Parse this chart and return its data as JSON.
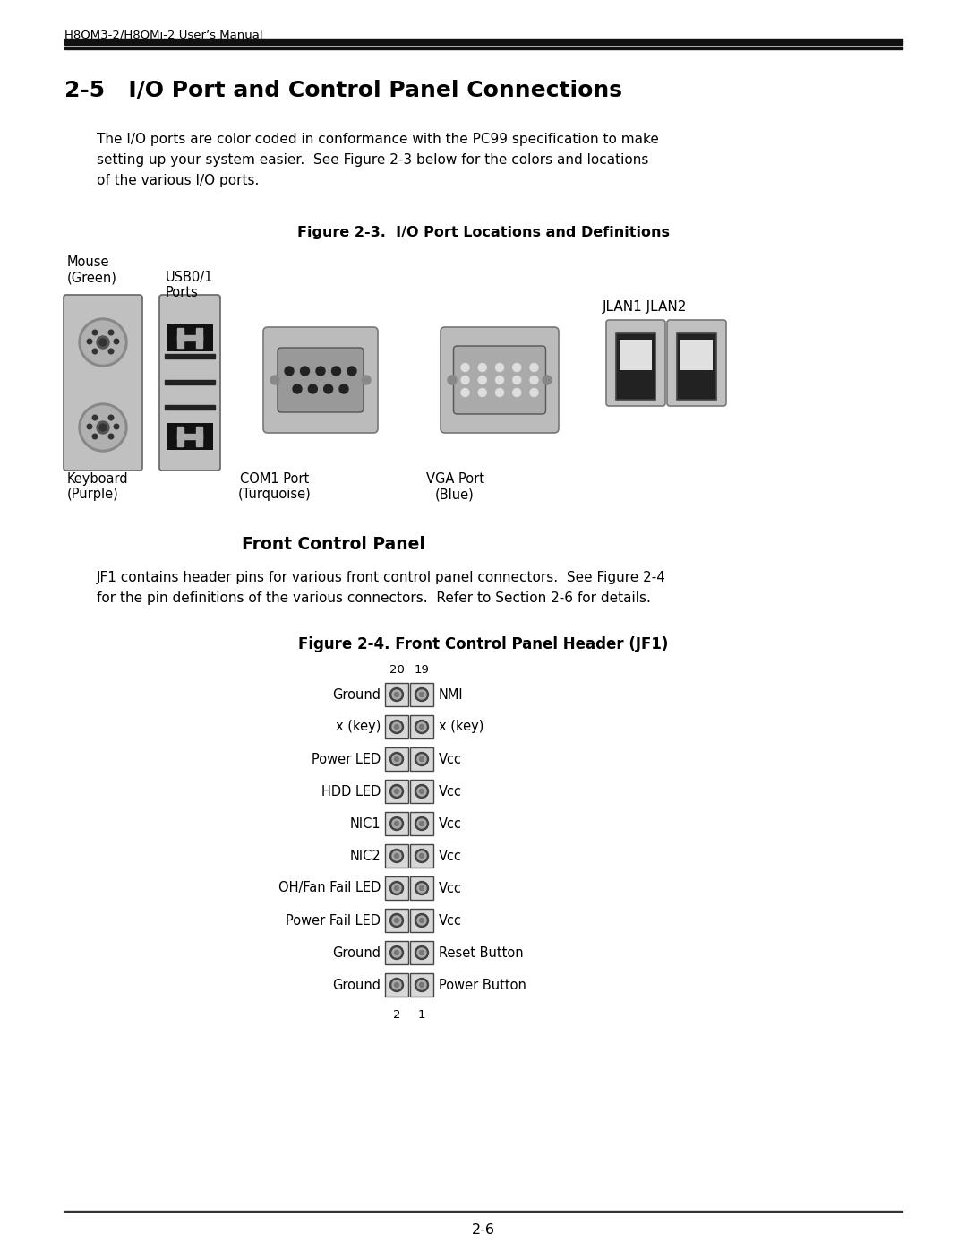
{
  "page_header": "H8QM3-2/H8QMi-2 User’s Manual",
  "page_number": "2-6",
  "section_title": "2-5   I/O Port and Control Panel Connections",
  "body_text_1": "The I/O ports are color coded in conformance with the PC99 specification to make\nsetting up your system easier.  See Figure 2-3 below for the colors and locations\nof the various I/O ports.",
  "figure_2_3_title": "Figure 2-3.  I/O Port Locations and Definitions",
  "mouse_label": "Mouse\n(Green)",
  "usb_label": "USB0/1\nPorts",
  "keyboard_label": "Keyboard\n(Purple)",
  "com1_label": "COM1 Port\n(Turquoise)",
  "vga_label": "VGA Port\n(Blue)",
  "jlan_label": "JLAN1 JLAN2",
  "front_panel_subtitle": "Front Control Panel",
  "body_text_2": "JF1 contains header pins for various front control panel connectors.  See Figure 2-4\nfor the pin definitions of the various connectors.  Refer to Section 2-6 for details.",
  "figure_2_4_title": "Figure 2-4. Front Control Panel Header (JF1)",
  "pin_rows": [
    {
      "left": "Ground",
      "right": "NMI"
    },
    {
      "left": "x (key)",
      "right": "x (key)"
    },
    {
      "left": "Power LED",
      "right": "Vcc"
    },
    {
      "left": "HDD LED",
      "right": "Vcc"
    },
    {
      "left": "NIC1",
      "right": "Vcc"
    },
    {
      "left": "NIC2",
      "right": "Vcc"
    },
    {
      "left": "OH/Fan Fail LED",
      "right": "Vcc"
    },
    {
      "left": "Power Fail LED",
      "right": "Vcc"
    },
    {
      "left": "Ground",
      "right": "Reset Button"
    },
    {
      "left": "Ground",
      "right": "Power Button"
    }
  ],
  "pin_top_labels": [
    "20",
    "19"
  ],
  "pin_bottom_labels": [
    "2",
    "1"
  ],
  "bg_color": "#ffffff",
  "text_color": "#000000"
}
